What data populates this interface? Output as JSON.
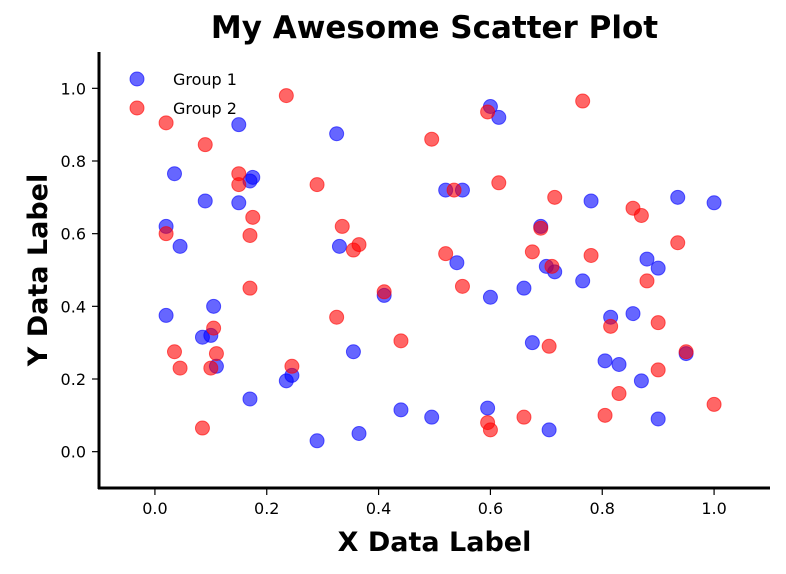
{
  "chart_data": {
    "type": "scatter",
    "title": "My Awesome Scatter Plot",
    "xlabel": "X Data Label",
    "ylabel": "Y Data Label",
    "xlim": [
      -0.1,
      1.1
    ],
    "ylim": [
      -0.1,
      1.1
    ],
    "xticks": [
      0.0,
      0.2,
      0.4,
      0.6,
      0.8,
      1.0
    ],
    "yticks": [
      0.0,
      0.2,
      0.4,
      0.6,
      0.8,
      1.0
    ],
    "xtick_labels": [
      "0.0",
      "0.2",
      "0.4",
      "0.6",
      "0.8",
      "1.0"
    ],
    "ytick_labels": [
      "0.0",
      "0.2",
      "0.4",
      "0.6",
      "0.8",
      "1.0"
    ],
    "grid": false,
    "legend_position": "top-left",
    "series": [
      {
        "name": "Group 1",
        "color": "#0000ff",
        "points": [
          [
            0.02,
            0.62
          ],
          [
            0.035,
            0.765
          ],
          [
            0.045,
            0.565
          ],
          [
            0.02,
            0.375
          ],
          [
            0.09,
            0.69
          ],
          [
            0.085,
            0.315
          ],
          [
            0.1,
            0.32
          ],
          [
            0.105,
            0.4
          ],
          [
            0.11,
            0.235
          ],
          [
            0.15,
            0.9
          ],
          [
            0.15,
            0.685
          ],
          [
            0.17,
            0.745
          ],
          [
            0.175,
            0.755
          ],
          [
            0.17,
            0.145
          ],
          [
            0.235,
            0.195
          ],
          [
            0.245,
            0.21
          ],
          [
            0.29,
            0.03
          ],
          [
            0.325,
            0.875
          ],
          [
            0.33,
            0.565
          ],
          [
            0.355,
            0.275
          ],
          [
            0.365,
            0.05
          ],
          [
            0.41,
            0.43
          ],
          [
            0.44,
            0.115
          ],
          [
            0.495,
            0.095
          ],
          [
            0.52,
            0.72
          ],
          [
            0.54,
            0.52
          ],
          [
            0.55,
            0.72
          ],
          [
            0.6,
            0.95
          ],
          [
            0.615,
            0.92
          ],
          [
            0.6,
            0.425
          ],
          [
            0.595,
            0.12
          ],
          [
            0.66,
            0.45
          ],
          [
            0.675,
            0.3
          ],
          [
            0.69,
            0.62
          ],
          [
            0.7,
            0.51
          ],
          [
            0.715,
            0.495
          ],
          [
            0.705,
            0.06
          ],
          [
            0.765,
            0.47
          ],
          [
            0.78,
            0.69
          ],
          [
            0.805,
            0.25
          ],
          [
            0.815,
            0.37
          ],
          [
            0.83,
            0.24
          ],
          [
            0.855,
            0.38
          ],
          [
            0.87,
            0.195
          ],
          [
            0.88,
            0.53
          ],
          [
            0.9,
            0.505
          ],
          [
            0.9,
            0.09
          ],
          [
            0.935,
            0.7
          ],
          [
            0.95,
            0.27
          ],
          [
            1.0,
            0.685
          ]
        ]
      },
      {
        "name": "Group 2",
        "color": "#ff0000",
        "points": [
          [
            0.02,
            0.905
          ],
          [
            0.02,
            0.6
          ],
          [
            0.035,
            0.275
          ],
          [
            0.045,
            0.23
          ],
          [
            0.09,
            0.845
          ],
          [
            0.085,
            0.065
          ],
          [
            0.105,
            0.34
          ],
          [
            0.1,
            0.23
          ],
          [
            0.11,
            0.27
          ],
          [
            0.15,
            0.765
          ],
          [
            0.15,
            0.735
          ],
          [
            0.17,
            0.595
          ],
          [
            0.175,
            0.645
          ],
          [
            0.17,
            0.45
          ],
          [
            0.235,
            0.98
          ],
          [
            0.245,
            0.235
          ],
          [
            0.29,
            0.735
          ],
          [
            0.325,
            0.37
          ],
          [
            0.335,
            0.62
          ],
          [
            0.355,
            0.555
          ],
          [
            0.365,
            0.57
          ],
          [
            0.41,
            0.44
          ],
          [
            0.44,
            0.305
          ],
          [
            0.495,
            0.86
          ],
          [
            0.52,
            0.545
          ],
          [
            0.535,
            0.72
          ],
          [
            0.55,
            0.455
          ],
          [
            0.595,
            0.935
          ],
          [
            0.615,
            0.74
          ],
          [
            0.595,
            0.08
          ],
          [
            0.6,
            0.06
          ],
          [
            0.66,
            0.095
          ],
          [
            0.675,
            0.55
          ],
          [
            0.69,
            0.615
          ],
          [
            0.705,
            0.29
          ],
          [
            0.71,
            0.51
          ],
          [
            0.715,
            0.7
          ],
          [
            0.765,
            0.965
          ],
          [
            0.78,
            0.54
          ],
          [
            0.805,
            0.1
          ],
          [
            0.815,
            0.345
          ],
          [
            0.83,
            0.16
          ],
          [
            0.855,
            0.67
          ],
          [
            0.87,
            0.65
          ],
          [
            0.88,
            0.47
          ],
          [
            0.9,
            0.355
          ],
          [
            0.9,
            0.225
          ],
          [
            0.935,
            0.575
          ],
          [
            0.95,
            0.275
          ],
          [
            1.0,
            0.13
          ]
        ]
      }
    ]
  }
}
